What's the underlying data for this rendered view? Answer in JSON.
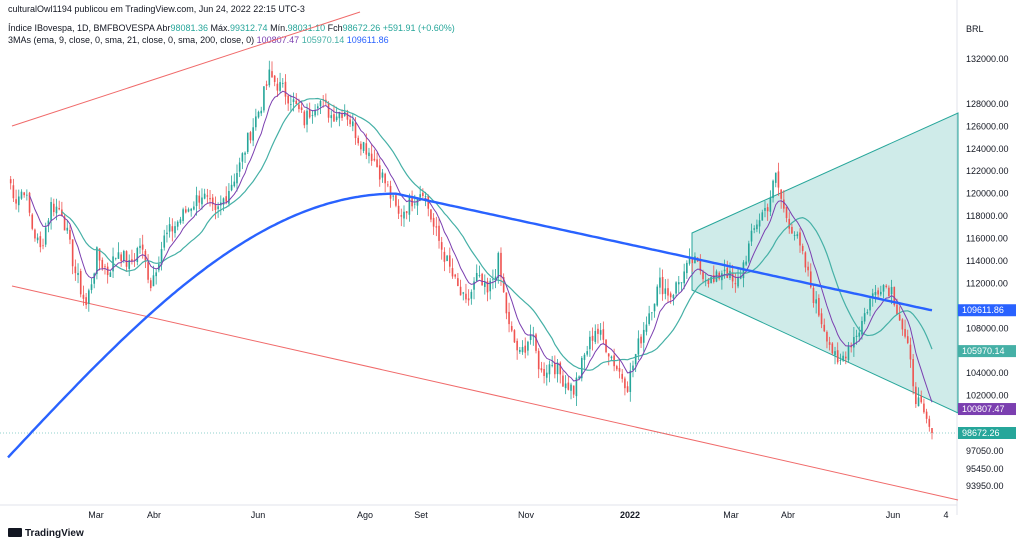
{
  "header": {
    "attribution": "culturalOwl1194 publicou em TradingView.com, Jun 24, 2022 22:15 UTC-3",
    "symbol": "Índice IBovespa, 1D, BMFBOVESPA",
    "open_label": "Abr",
    "open": "98081.36",
    "high_label": "Máx.",
    "high": "99312.74",
    "low_label": "Mín.",
    "low": "98031.10",
    "close_label": "Fch",
    "close": "98672.26",
    "change": "+591.91 (+0.60%)",
    "ma_label": "3MAs (ema, 9, close, 0, sma, 21, close, 0, sma, 200, close, 0)",
    "ma9_value": "100807.47",
    "ma21_value": "105970.14",
    "ma200_value": "109611.86"
  },
  "currency": "BRL",
  "brand": "TradingView",
  "colors": {
    "up": "#26a69a",
    "down": "#ef5350",
    "ema9": "#7b3fb0",
    "sma21": "#45b0a6",
    "sma200": "#2962ff",
    "channel": "#f06a6a",
    "triangle": "#26a69a"
  },
  "chart_data": {
    "type": "candlestick",
    "y_axis_ticks": [
      "132000.00",
      "128000.00",
      "126000.00",
      "124000.00",
      "122000.00",
      "120000.00",
      "118000.00",
      "116000.00",
      "114000.00",
      "112000.00",
      "108000.00",
      "104000.00",
      "102000.00",
      "97050.00",
      "95450.00",
      "93950.00"
    ],
    "x_axis_ticks": [
      "Mar",
      "Abr",
      "Jun",
      "Ago",
      "Set",
      "Nov",
      "2022",
      "Mar",
      "Abr",
      "Jun",
      "4"
    ],
    "x_axis_bold": [
      "2022"
    ],
    "price_tags": [
      {
        "label": "109611.86",
        "value": 109611.86,
        "series": "sma200"
      },
      {
        "label": "105970.14",
        "value": 105970.14,
        "series": "sma21"
      },
      {
        "label": "100807.47",
        "value": 100807.47,
        "series": "ema9"
      },
      {
        "label": "98672.26",
        "value": 98672.26,
        "series": "last"
      }
    ],
    "price_path": [
      {
        "t": 0,
        "v": 121500
      },
      {
        "t": 3,
        "v": 119500
      },
      {
        "t": 6,
        "v": 120500
      },
      {
        "t": 9,
        "v": 117000
      },
      {
        "t": 12,
        "v": 115000
      },
      {
        "t": 16,
        "v": 119000
      },
      {
        "t": 20,
        "v": 118500
      },
      {
        "t": 25,
        "v": 113000
      },
      {
        "t": 29,
        "v": 110000
      },
      {
        "t": 33,
        "v": 114500
      },
      {
        "t": 37,
        "v": 113000
      },
      {
        "t": 41,
        "v": 115000
      },
      {
        "t": 45,
        "v": 113500
      },
      {
        "t": 49,
        "v": 115500
      },
      {
        "t": 53,
        "v": 112000
      },
      {
        "t": 58,
        "v": 116000
      },
      {
        "t": 63,
        "v": 117500
      },
      {
        "t": 68,
        "v": 119000
      },
      {
        "t": 72,
        "v": 120000
      },
      {
        "t": 77,
        "v": 118000
      },
      {
        "t": 82,
        "v": 120500
      },
      {
        "t": 86,
        "v": 122500
      },
      {
        "t": 90,
        "v": 125500
      },
      {
        "t": 94,
        "v": 128000
      },
      {
        "t": 97,
        "v": 130500
      },
      {
        "t": 101,
        "v": 129500
      },
      {
        "t": 105,
        "v": 128500
      },
      {
        "t": 110,
        "v": 126500
      },
      {
        "t": 115,
        "v": 128500
      },
      {
        "t": 120,
        "v": 127000
      },
      {
        "t": 125,
        "v": 127500
      },
      {
        "t": 130,
        "v": 125000
      },
      {
        "t": 135,
        "v": 123500
      },
      {
        "t": 140,
        "v": 121000
      },
      {
        "t": 145,
        "v": 118000
      },
      {
        "t": 150,
        "v": 119500
      },
      {
        "t": 154,
        "v": 120500
      },
      {
        "t": 158,
        "v": 117000
      },
      {
        "t": 162,
        "v": 114500
      },
      {
        "t": 166,
        "v": 112000
      },
      {
        "t": 170,
        "v": 110000
      },
      {
        "t": 174,
        "v": 112500
      },
      {
        "t": 178,
        "v": 111000
      },
      {
        "t": 182,
        "v": 114000
      },
      {
        "t": 186,
        "v": 108000
      },
      {
        "t": 190,
        "v": 105500
      },
      {
        "t": 194,
        "v": 107500
      },
      {
        "t": 198,
        "v": 104000
      },
      {
        "t": 202,
        "v": 105000
      },
      {
        "t": 206,
        "v": 103500
      },
      {
        "t": 210,
        "v": 102500
      },
      {
        "t": 214,
        "v": 105500
      },
      {
        "t": 218,
        "v": 108000
      },
      {
        "t": 222,
        "v": 106500
      },
      {
        "t": 226,
        "v": 104500
      },
      {
        "t": 230,
        "v": 103000
      },
      {
        "t": 234,
        "v": 106500
      },
      {
        "t": 238,
        "v": 109500
      },
      {
        "t": 242,
        "v": 112000
      },
      {
        "t": 246,
        "v": 111000
      },
      {
        "t": 250,
        "v": 112500
      },
      {
        "t": 254,
        "v": 114000
      },
      {
        "t": 258,
        "v": 113000
      },
      {
        "t": 262,
        "v": 112000
      },
      {
        "t": 266,
        "v": 113500
      },
      {
        "t": 270,
        "v": 111500
      },
      {
        "t": 274,
        "v": 114500
      },
      {
        "t": 278,
        "v": 117500
      },
      {
        "t": 282,
        "v": 119000
      },
      {
        "t": 285,
        "v": 121500
      },
      {
        "t": 288,
        "v": 118500
      },
      {
        "t": 292,
        "v": 116500
      },
      {
        "t": 296,
        "v": 113500
      },
      {
        "t": 300,
        "v": 110000
      },
      {
        "t": 304,
        "v": 107500
      },
      {
        "t": 308,
        "v": 104500
      },
      {
        "t": 312,
        "v": 106500
      },
      {
        "t": 316,
        "v": 108000
      },
      {
        "t": 320,
        "v": 110500
      },
      {
        "t": 324,
        "v": 112000
      },
      {
        "t": 328,
        "v": 111500
      },
      {
        "t": 331,
        "v": 109000
      },
      {
        "t": 334,
        "v": 106000
      },
      {
        "t": 337,
        "v": 102000
      },
      {
        "t": 340,
        "v": 100000
      },
      {
        "t": 343,
        "v": 98672
      }
    ]
  }
}
